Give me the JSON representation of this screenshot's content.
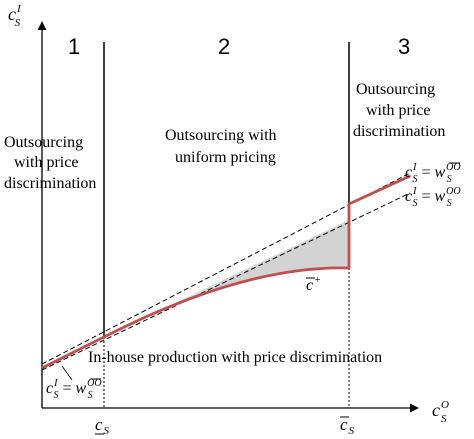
{
  "axes": {
    "y_label": {
      "base": "c",
      "sup": "I",
      "sub": "S"
    },
    "x_label": {
      "base": "c",
      "sup": "O",
      "sub": "S"
    }
  },
  "regions": [
    {
      "number": "1",
      "lines": [
        "Outsourcing",
        "with price",
        "discrimination"
      ]
    },
    {
      "number": "2",
      "lines": [
        "Outsourcing with",
        "uniform pricing"
      ]
    },
    {
      "number": "3",
      "lines": [
        "Outsourcing",
        "with price",
        "discrimination"
      ]
    }
  ],
  "bottom_region_label": "In-house production with price discrimination",
  "curve_labels": {
    "wbar_line": {
      "lhs": "c",
      "lhs_sup": "I",
      "lhs_sub": "S",
      "eq": " = ",
      "rhs": "w",
      "rhs_sup": "OO",
      "rhs_sub": "S",
      "rhs_bar": true
    },
    "w_line": {
      "lhs": "c",
      "lhs_sup": "I",
      "lhs_sub": "S",
      "eq": " = ",
      "rhs": "w",
      "rhs_sup": "OO",
      "rhs_sub": "S",
      "rhs_bar": false
    },
    "cbar_plus": {
      "base": "c",
      "sup": "+",
      "bar": true
    },
    "bottom_left": {
      "lhs": "c",
      "lhs_sup": "I",
      "lhs_sub": "S",
      "eq": " = ",
      "rhs": "w",
      "rhs_sup": "OO",
      "rhs_sub": "S",
      "rhs_bar": true
    }
  },
  "x_ticks": [
    {
      "base": "c",
      "sub": "S",
      "decoration": "underline"
    },
    {
      "base": "c",
      "sub": "S",
      "decoration": "overline"
    }
  ],
  "colors": {
    "curve": "#c0504d",
    "shade": "#d3d3d3",
    "axis": "#000000"
  }
}
